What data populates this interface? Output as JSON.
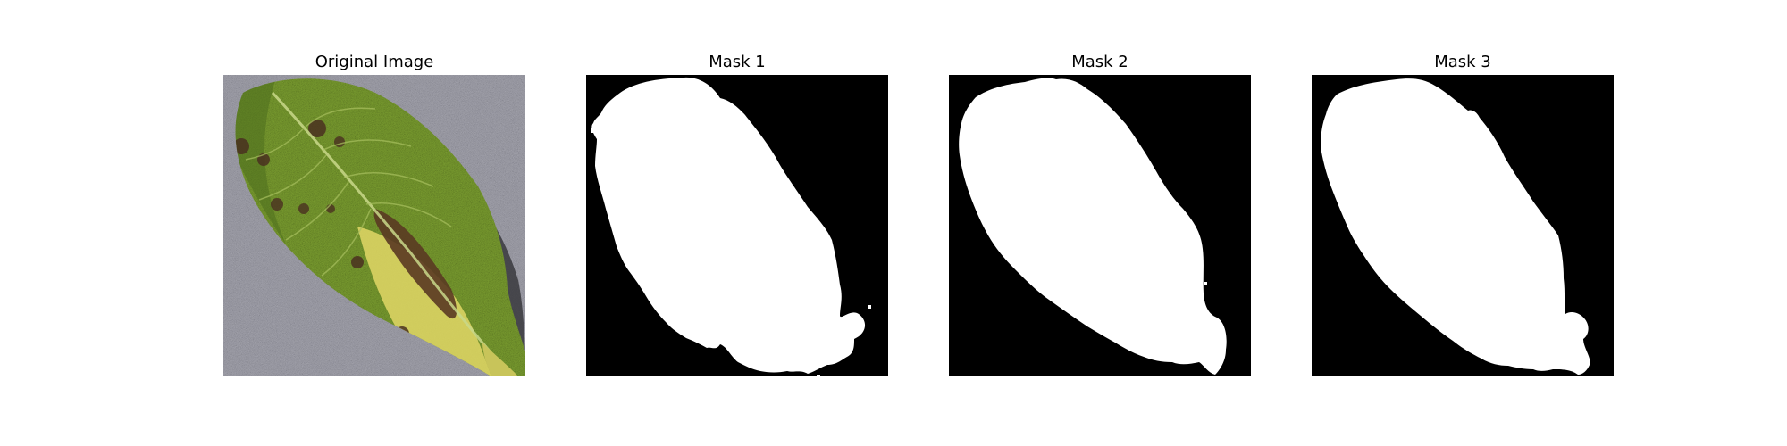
{
  "figure": {
    "panels": [
      {
        "title": "Original Image",
        "content": "leaf-photo"
      },
      {
        "title": "Mask 1",
        "content": "binary-mask"
      },
      {
        "title": "Mask 2",
        "content": "binary-mask"
      },
      {
        "title": "Mask 3",
        "content": "binary-mask"
      }
    ]
  },
  "colors": {
    "background": "#ffffff",
    "mask_background": "#000000",
    "mask_foreground": "#ffffff",
    "leaf_green": "#7ea232",
    "leaf_dark": "#3f5e1a",
    "lesion_brown": "#5a3a22",
    "lesion_yellow": "#e2d766",
    "surface_gray": "#a6a6ae"
  }
}
